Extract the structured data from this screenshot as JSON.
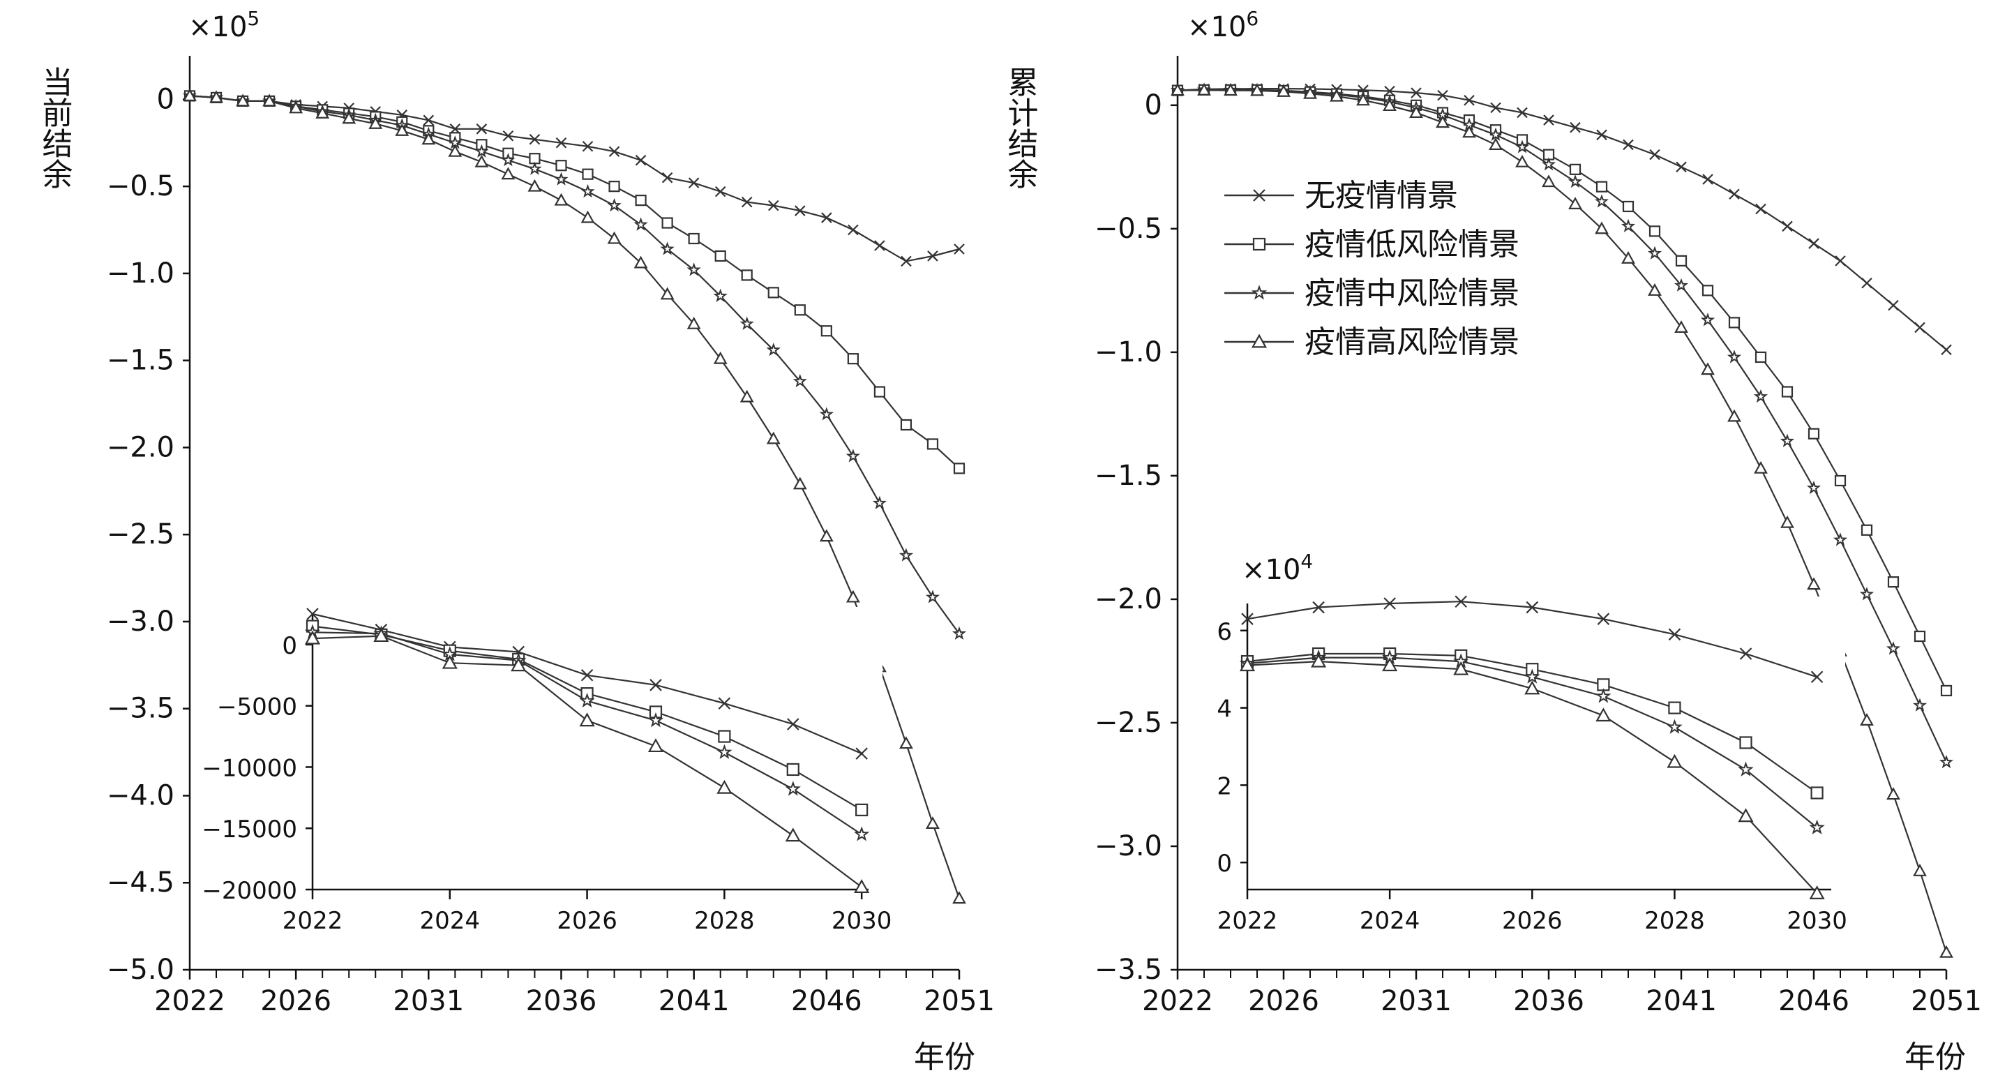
{
  "chart_data": [
    {
      "type": "line",
      "ylabel": "当前结余",
      "xlabel": "年份",
      "y_multiplier": "×10",
      "y_multiplier_exp": "5",
      "x": [
        2022,
        2023,
        2024,
        2025,
        2026,
        2027,
        2028,
        2029,
        2030,
        2031,
        2032,
        2033,
        2034,
        2035,
        2036,
        2037,
        2038,
        2039,
        2040,
        2041,
        2042,
        2043,
        2044,
        2045,
        2046,
        2047,
        2048,
        2049,
        2050,
        2051
      ],
      "xticks": [
        2022,
        2026,
        2031,
        2036,
        2041,
        2046,
        2051
      ],
      "xlim": [
        2022,
        2051
      ],
      "ylim": [
        -5.0,
        0.25
      ],
      "yticks": [
        0,
        -0.5,
        -1.0,
        -1.5,
        -2.0,
        -2.5,
        -3.0,
        -3.5,
        -4.0,
        -4.5,
        -5.0
      ],
      "ytick_labels": [
        "0",
        "−0.5",
        "−1.0",
        "−1.5",
        "−2.0",
        "−2.5",
        "−3.0",
        "−3.5",
        "−4.0",
        "−4.5",
        "−5.0"
      ],
      "series": [
        {
          "marker": "x",
          "values": [
            0.02,
            0.01,
            -0.01,
            -0.01,
            -0.03,
            -0.04,
            -0.05,
            -0.07,
            -0.09,
            -0.12,
            -0.17,
            -0.17,
            -0.21,
            -0.23,
            -0.25,
            -0.27,
            -0.3,
            -0.35,
            -0.45,
            -0.48,
            -0.53,
            -0.59,
            -0.61,
            -0.64,
            -0.68,
            -0.75,
            -0.84,
            -0.93,
            -0.9,
            -0.86
          ]
        },
        {
          "marker": "square",
          "values": [
            0.02,
            0.01,
            -0.01,
            -0.01,
            -0.04,
            -0.06,
            -0.08,
            -0.1,
            -0.13,
            -0.18,
            -0.22,
            -0.26,
            -0.31,
            -0.34,
            -0.38,
            -0.43,
            -0.5,
            -0.58,
            -0.71,
            -0.8,
            -0.9,
            -1.01,
            -1.11,
            -1.21,
            -1.33,
            -1.49,
            -1.68,
            -1.87,
            -1.98,
            -2.12
          ]
        },
        {
          "marker": "star",
          "values": [
            0.02,
            0.01,
            -0.01,
            -0.01,
            -0.04,
            -0.07,
            -0.09,
            -0.12,
            -0.15,
            -0.2,
            -0.25,
            -0.3,
            -0.35,
            -0.4,
            -0.46,
            -0.53,
            -0.61,
            -0.72,
            -0.86,
            -0.98,
            -1.13,
            -1.29,
            -1.44,
            -1.62,
            -1.81,
            -2.05,
            -2.32,
            -2.62,
            -2.86,
            -3.07
          ]
        },
        {
          "marker": "triangle",
          "values": [
            0.02,
            0.01,
            -0.01,
            -0.01,
            -0.05,
            -0.08,
            -0.11,
            -0.14,
            -0.18,
            -0.23,
            -0.3,
            -0.36,
            -0.43,
            -0.5,
            -0.58,
            -0.68,
            -0.8,
            -0.94,
            -1.12,
            -1.29,
            -1.49,
            -1.71,
            -1.95,
            -2.21,
            -2.51,
            -2.86,
            -3.26,
            -3.7,
            -4.16,
            -4.59
          ]
        }
      ],
      "inset": {
        "x": [
          2022,
          2023,
          2024,
          2025,
          2026,
          2027,
          2028,
          2029,
          2030
        ],
        "xticks": [
          2022,
          2024,
          2026,
          2028,
          2030
        ],
        "xlim": [
          2022,
          2030.1
        ],
        "ylim": [
          -20000,
          2500
        ],
        "yticks": [
          0,
          -5000,
          -10000,
          -15000,
          -20000
        ],
        "ytick_labels": [
          "0",
          "−5000",
          "−10000",
          "−15000",
          "−20000"
        ],
        "series": [
          {
            "marker": "x",
            "values": [
              2500,
              1200,
              -200,
              -600,
              -2500,
              -3300,
              -4800,
              -6500,
              -8900
            ]
          },
          {
            "marker": "square",
            "values": [
              1500,
              800,
              -500,
              -1200,
              -4000,
              -5500,
              -7500,
              -10200,
              -13500
            ]
          },
          {
            "marker": "star",
            "values": [
              1000,
              900,
              -800,
              -1300,
              -4600,
              -6200,
              -8800,
              -11800,
              -15500
            ]
          },
          {
            "marker": "triangle",
            "values": [
              500,
              700,
              -1500,
              -1700,
              -6200,
              -8300,
              -11700,
              -15600,
              -19800
            ]
          }
        ]
      }
    },
    {
      "type": "line",
      "ylabel": "累计结余",
      "xlabel": "年份",
      "y_multiplier": "×10",
      "y_multiplier_exp": "6",
      "x": [
        2022,
        2023,
        2024,
        2025,
        2026,
        2027,
        2028,
        2029,
        2030,
        2031,
        2032,
        2033,
        2034,
        2035,
        2036,
        2037,
        2038,
        2039,
        2040,
        2041,
        2042,
        2043,
        2044,
        2045,
        2046,
        2047,
        2048,
        2049,
        2050,
        2051
      ],
      "xticks": [
        2022,
        2026,
        2031,
        2036,
        2041,
        2046,
        2051
      ],
      "xlim": [
        2022,
        2051
      ],
      "ylim": [
        -3.5,
        0.2
      ],
      "yticks": [
        0,
        -0.5,
        -1.0,
        -1.5,
        -2.0,
        -2.5,
        -3.0,
        -3.5
      ],
      "ytick_labels": [
        "0",
        "−0.5",
        "−1.0",
        "−1.5",
        "−2.0",
        "−2.5",
        "−3.0",
        "−3.5"
      ],
      "legend": {
        "position": "upper-center",
        "entries": [
          "无疫情情景",
          "疫情低风险情景",
          "疫情中风险情景",
          "疫情高风险情景"
        ]
      },
      "series": [
        {
          "name": "无疫情情景",
          "marker": "x",
          "values": [
            0.06,
            0.065,
            0.066,
            0.067,
            0.067,
            0.066,
            0.064,
            0.061,
            0.057,
            0.05,
            0.04,
            0.02,
            -0.01,
            -0.03,
            -0.06,
            -0.09,
            -0.12,
            -0.16,
            -0.2,
            -0.25,
            -0.3,
            -0.36,
            -0.42,
            -0.49,
            -0.56,
            -0.63,
            -0.72,
            -0.81,
            -0.9,
            -0.99
          ]
        },
        {
          "name": "疫情低风险情景",
          "marker": "square",
          "values": [
            0.06,
            0.062,
            0.062,
            0.062,
            0.059,
            0.054,
            0.046,
            0.036,
            0.02,
            0,
            -0.03,
            -0.06,
            -0.1,
            -0.14,
            -0.2,
            -0.26,
            -0.33,
            -0.41,
            -0.51,
            -0.63,
            -0.75,
            -0.88,
            -1.02,
            -1.16,
            -1.33,
            -1.52,
            -1.72,
            -1.93,
            -2.15,
            -2.37
          ]
        },
        {
          "name": "疫情中风险情景",
          "marker": "star",
          "values": [
            0.06,
            0.062,
            0.061,
            0.061,
            0.058,
            0.052,
            0.043,
            0.031,
            0.014,
            -0.01,
            -0.04,
            -0.08,
            -0.12,
            -0.17,
            -0.24,
            -0.31,
            -0.39,
            -0.49,
            -0.6,
            -0.73,
            -0.87,
            -1.02,
            -1.18,
            -1.36,
            -1.55,
            -1.76,
            -1.98,
            -2.2,
            -2.43,
            -2.66
          ]
        },
        {
          "name": "疫情高风险情景",
          "marker": "triangle",
          "values": [
            0.06,
            0.061,
            0.06,
            0.059,
            0.055,
            0.047,
            0.036,
            0.02,
            -0.002,
            -0.03,
            -0.07,
            -0.11,
            -0.16,
            -0.23,
            -0.31,
            -0.4,
            -0.5,
            -0.62,
            -0.75,
            -0.9,
            -1.07,
            -1.26,
            -1.47,
            -1.69,
            -1.94,
            -2.21,
            -2.49,
            -2.79,
            -3.1,
            -3.43
          ]
        }
      ],
      "inset": {
        "x": [
          2022,
          2023,
          2024,
          2025,
          2026,
          2027,
          2028,
          2029,
          2030
        ],
        "xticks": [
          2022,
          2024,
          2026,
          2028,
          2030
        ],
        "xlim": [
          2022,
          2030.2
        ],
        "ylim": [
          -0.7,
          6.7
        ],
        "yticks": [
          0,
          2,
          4,
          6
        ],
        "ytick_labels": [
          "0",
          "2",
          "4",
          "6"
        ],
        "y_multiplier": "×10",
        "y_multiplier_exp": "4",
        "series": [
          {
            "marker": "x",
            "values": [
              6.3,
              6.6,
              6.7,
              6.75,
              6.6,
              6.3,
              5.9,
              5.4,
              4.8
            ]
          },
          {
            "marker": "square",
            "values": [
              5.2,
              5.4,
              5.4,
              5.35,
              5.0,
              4.6,
              4.0,
              3.1,
              1.8
            ]
          },
          {
            "marker": "star",
            "values": [
              5.15,
              5.3,
              5.3,
              5.2,
              4.8,
              4.3,
              3.5,
              2.4,
              0.9
            ]
          },
          {
            "marker": "triangle",
            "values": [
              5.1,
              5.2,
              5.1,
              5.0,
              4.5,
              3.8,
              2.6,
              1.2,
              -0.8
            ]
          }
        ]
      }
    }
  ]
}
